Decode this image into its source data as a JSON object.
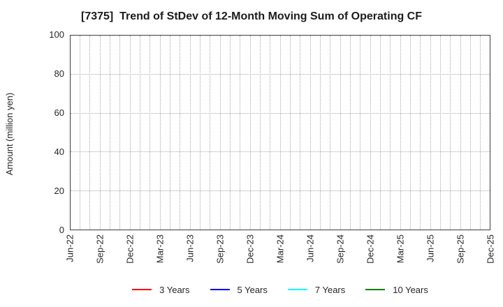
{
  "chart_data": {
    "type": "line",
    "title": "[7375]  Trend of StDev of 12-Month Moving Sum of Operating CF",
    "xlabel": "",
    "ylabel": "Amount (million yen)",
    "ylim": [
      0,
      100
    ],
    "yticks": [
      0,
      20,
      40,
      60,
      80,
      100
    ],
    "x_tick_labels": [
      "Jun-22",
      "Sep-22",
      "Dec-22",
      "Mar-23",
      "Jun-23",
      "Sep-23",
      "Dec-23",
      "Mar-24",
      "Jun-24",
      "Sep-24",
      "Dec-24",
      "Mar-25",
      "Jun-25",
      "Sep-25",
      "Dec-25"
    ],
    "months_per_label": 3,
    "month_gridlines": 43,
    "grid": true,
    "grid_style": "dotted",
    "legend_position": "bottom",
    "series": [
      {
        "name": "3 Years",
        "color": "#ff0000",
        "values": []
      },
      {
        "name": "5 Years",
        "color": "#0000ff",
        "values": []
      },
      {
        "name": "7 Years",
        "color": "#00ffff",
        "values": []
      },
      {
        "name": "10 Years",
        "color": "#008000",
        "values": []
      }
    ]
  },
  "colors": {
    "background": "#ffffff",
    "text": "#262626",
    "title_text": "#1c1c1c",
    "grid": "#a8a8a8",
    "spine": "#3d3d3d"
  }
}
